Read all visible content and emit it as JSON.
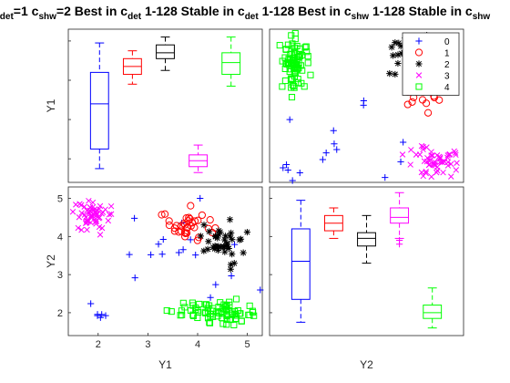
{
  "title_parts": [
    {
      "t": "c"
    },
    {
      "sub": "det"
    },
    {
      "t": "=1 c"
    },
    {
      "sub": "shw"
    },
    {
      "t": "=2 Best in c"
    },
    {
      "sub": "det"
    },
    {
      "t": " 1-128 Stable in c"
    },
    {
      "sub": "det"
    },
    {
      "t": " 1-128 Best in c"
    },
    {
      "sub": "shw"
    },
    {
      "t": " 1-128 Stable in c"
    },
    {
      "sub": "shw"
    }
  ],
  "chart_data": [
    {
      "panel": "Y1 vs Y1",
      "type": "box",
      "ylabel": "Y1",
      "xlabel": "",
      "categories": [
        "0",
        "1",
        "2",
        "3",
        "4"
      ],
      "colors": [
        "#0000ff",
        "#ff0000",
        "#000000",
        "#ff00ff",
        "#00ff00"
      ],
      "ylim": [
        1.4,
        5.3
      ],
      "boxes": [
        {
          "min": 1.75,
          "q1": 2.25,
          "median": 3.4,
          "q3": 4.2,
          "max": 4.95
        },
        {
          "min": 3.9,
          "q1": 4.15,
          "median": 4.35,
          "q3": 4.55,
          "max": 4.75
        },
        {
          "min": 4.25,
          "q1": 4.55,
          "median": 4.7,
          "q3": 4.9,
          "max": 5.1
        },
        {
          "min": 1.65,
          "q1": 1.8,
          "median": 1.95,
          "q3": 2.1,
          "max": 2.35
        },
        {
          "min": 3.85,
          "q1": 4.15,
          "median": 4.45,
          "q3": 4.7,
          "max": 5.1
        }
      ]
    },
    {
      "panel": "Y2 vs Y1",
      "type": "scatter",
      "legend": {
        "location": "top-right",
        "entries": [
          "0",
          "1",
          "2",
          "3",
          "4"
        ]
      },
      "series": [
        {
          "name": "0",
          "marker": "+",
          "color": "#0000ff",
          "clusters": [
            {
              "cx": 0.3,
              "cy": 0.35,
              "sx": 0.14,
              "sy": 0.12,
              "n": 8
            },
            {
              "cx": 0.88,
              "cy": 0.8,
              "sx": 0.12,
              "sy": 0.12,
              "n": 8
            },
            {
              "cx": 0.1,
              "cy": 0.08,
              "sx": 0.06,
              "sy": 0.04,
              "n": 5
            },
            {
              "cx": 0.55,
              "cy": 0.1,
              "sx": 0.15,
              "sy": 0.12,
              "n": 4
            }
          ]
        },
        {
          "name": "1",
          "marker": "o",
          "color": "#ff0000",
          "clusters": [
            {
              "cx": 0.8,
              "cy": 0.65,
              "sx": 0.05,
              "sy": 0.09,
              "n": 30
            }
          ]
        },
        {
          "name": "2",
          "marker": "*",
          "color": "#000000",
          "clusters": [
            {
              "cx": 0.72,
              "cy": 0.85,
              "sx": 0.08,
              "sy": 0.08,
              "n": 40
            }
          ]
        },
        {
          "name": "3",
          "marker": "x",
          "color": "#ff00ff",
          "clusters": [
            {
              "cx": 0.85,
              "cy": 0.13,
              "sx": 0.06,
              "sy": 0.06,
              "n": 55
            }
          ]
        },
        {
          "name": "4",
          "marker": "s",
          "color": "#00ff00",
          "clusters": [
            {
              "cx": 0.12,
              "cy": 0.78,
              "sx": 0.035,
              "sy": 0.1,
              "n": 80
            }
          ]
        }
      ]
    },
    {
      "panel": "Y1 vs Y2",
      "type": "scatter",
      "xlabel": "Y1",
      "ylabel": "Y2",
      "xlim": [
        1.4,
        5.3
      ],
      "ylim": [
        1.4,
        5.3
      ],
      "xticks": [
        2,
        3,
        4,
        5
      ],
      "yticks": [
        2,
        3,
        4,
        5
      ],
      "series": [
        {
          "name": "0",
          "marker": "+",
          "color": "#0000ff",
          "clusters": [
            {
              "cx": 3.6,
              "cy": 3.9,
              "sx": 0.6,
              "sy": 0.6,
              "n": 14
            },
            {
              "cx": 2.0,
              "cy": 1.9,
              "sx": 0.15,
              "sy": 0.15,
              "n": 6
            },
            {
              "cx": 4.5,
              "cy": 2.9,
              "sx": 0.5,
              "sy": 0.4,
              "n": 5
            }
          ]
        },
        {
          "name": "1",
          "marker": "o",
          "color": "#ff0000",
          "clusters": [
            {
              "cx": 3.8,
              "cy": 4.2,
              "sx": 0.2,
              "sy": 0.18,
              "n": 35
            }
          ]
        },
        {
          "name": "2",
          "marker": "*",
          "color": "#000000",
          "clusters": [
            {
              "cx": 4.5,
              "cy": 3.9,
              "sx": 0.22,
              "sy": 0.28,
              "n": 40
            }
          ]
        },
        {
          "name": "3",
          "marker": "x",
          "color": "#ff00ff",
          "clusters": [
            {
              "cx": 1.9,
              "cy": 4.5,
              "sx": 0.18,
              "sy": 0.25,
              "n": 55
            }
          ]
        },
        {
          "name": "4",
          "marker": "s",
          "color": "#00ff00",
          "clusters": [
            {
              "cx": 4.45,
              "cy": 2.0,
              "sx": 0.35,
              "sy": 0.15,
              "n": 80
            }
          ]
        }
      ]
    },
    {
      "panel": "Y2 vs Y2",
      "type": "box",
      "xlabel": "Y2",
      "categories": [
        "0",
        "1",
        "2",
        "3",
        "4"
      ],
      "colors": [
        "#0000ff",
        "#ff0000",
        "#000000",
        "#ff00ff",
        "#00ff00"
      ],
      "ylim": [
        1.4,
        5.3
      ],
      "boxes": [
        {
          "min": 1.75,
          "q1": 2.35,
          "median": 3.35,
          "q3": 4.2,
          "max": 4.95
        },
        {
          "min": 3.95,
          "q1": 4.15,
          "median": 4.35,
          "q3": 4.55,
          "max": 4.75
        },
        {
          "min": 3.3,
          "q1": 3.75,
          "median": 3.95,
          "q3": 4.1,
          "max": 4.55
        },
        {
          "min": 3.95,
          "q1": 4.35,
          "median": 4.5,
          "q3": 4.75,
          "max": 5.15,
          "outliers": [
            3.8,
            3.9
          ]
        },
        {
          "min": 1.6,
          "q1": 1.85,
          "median": 2.0,
          "q3": 2.2,
          "max": 2.65
        }
      ]
    }
  ]
}
